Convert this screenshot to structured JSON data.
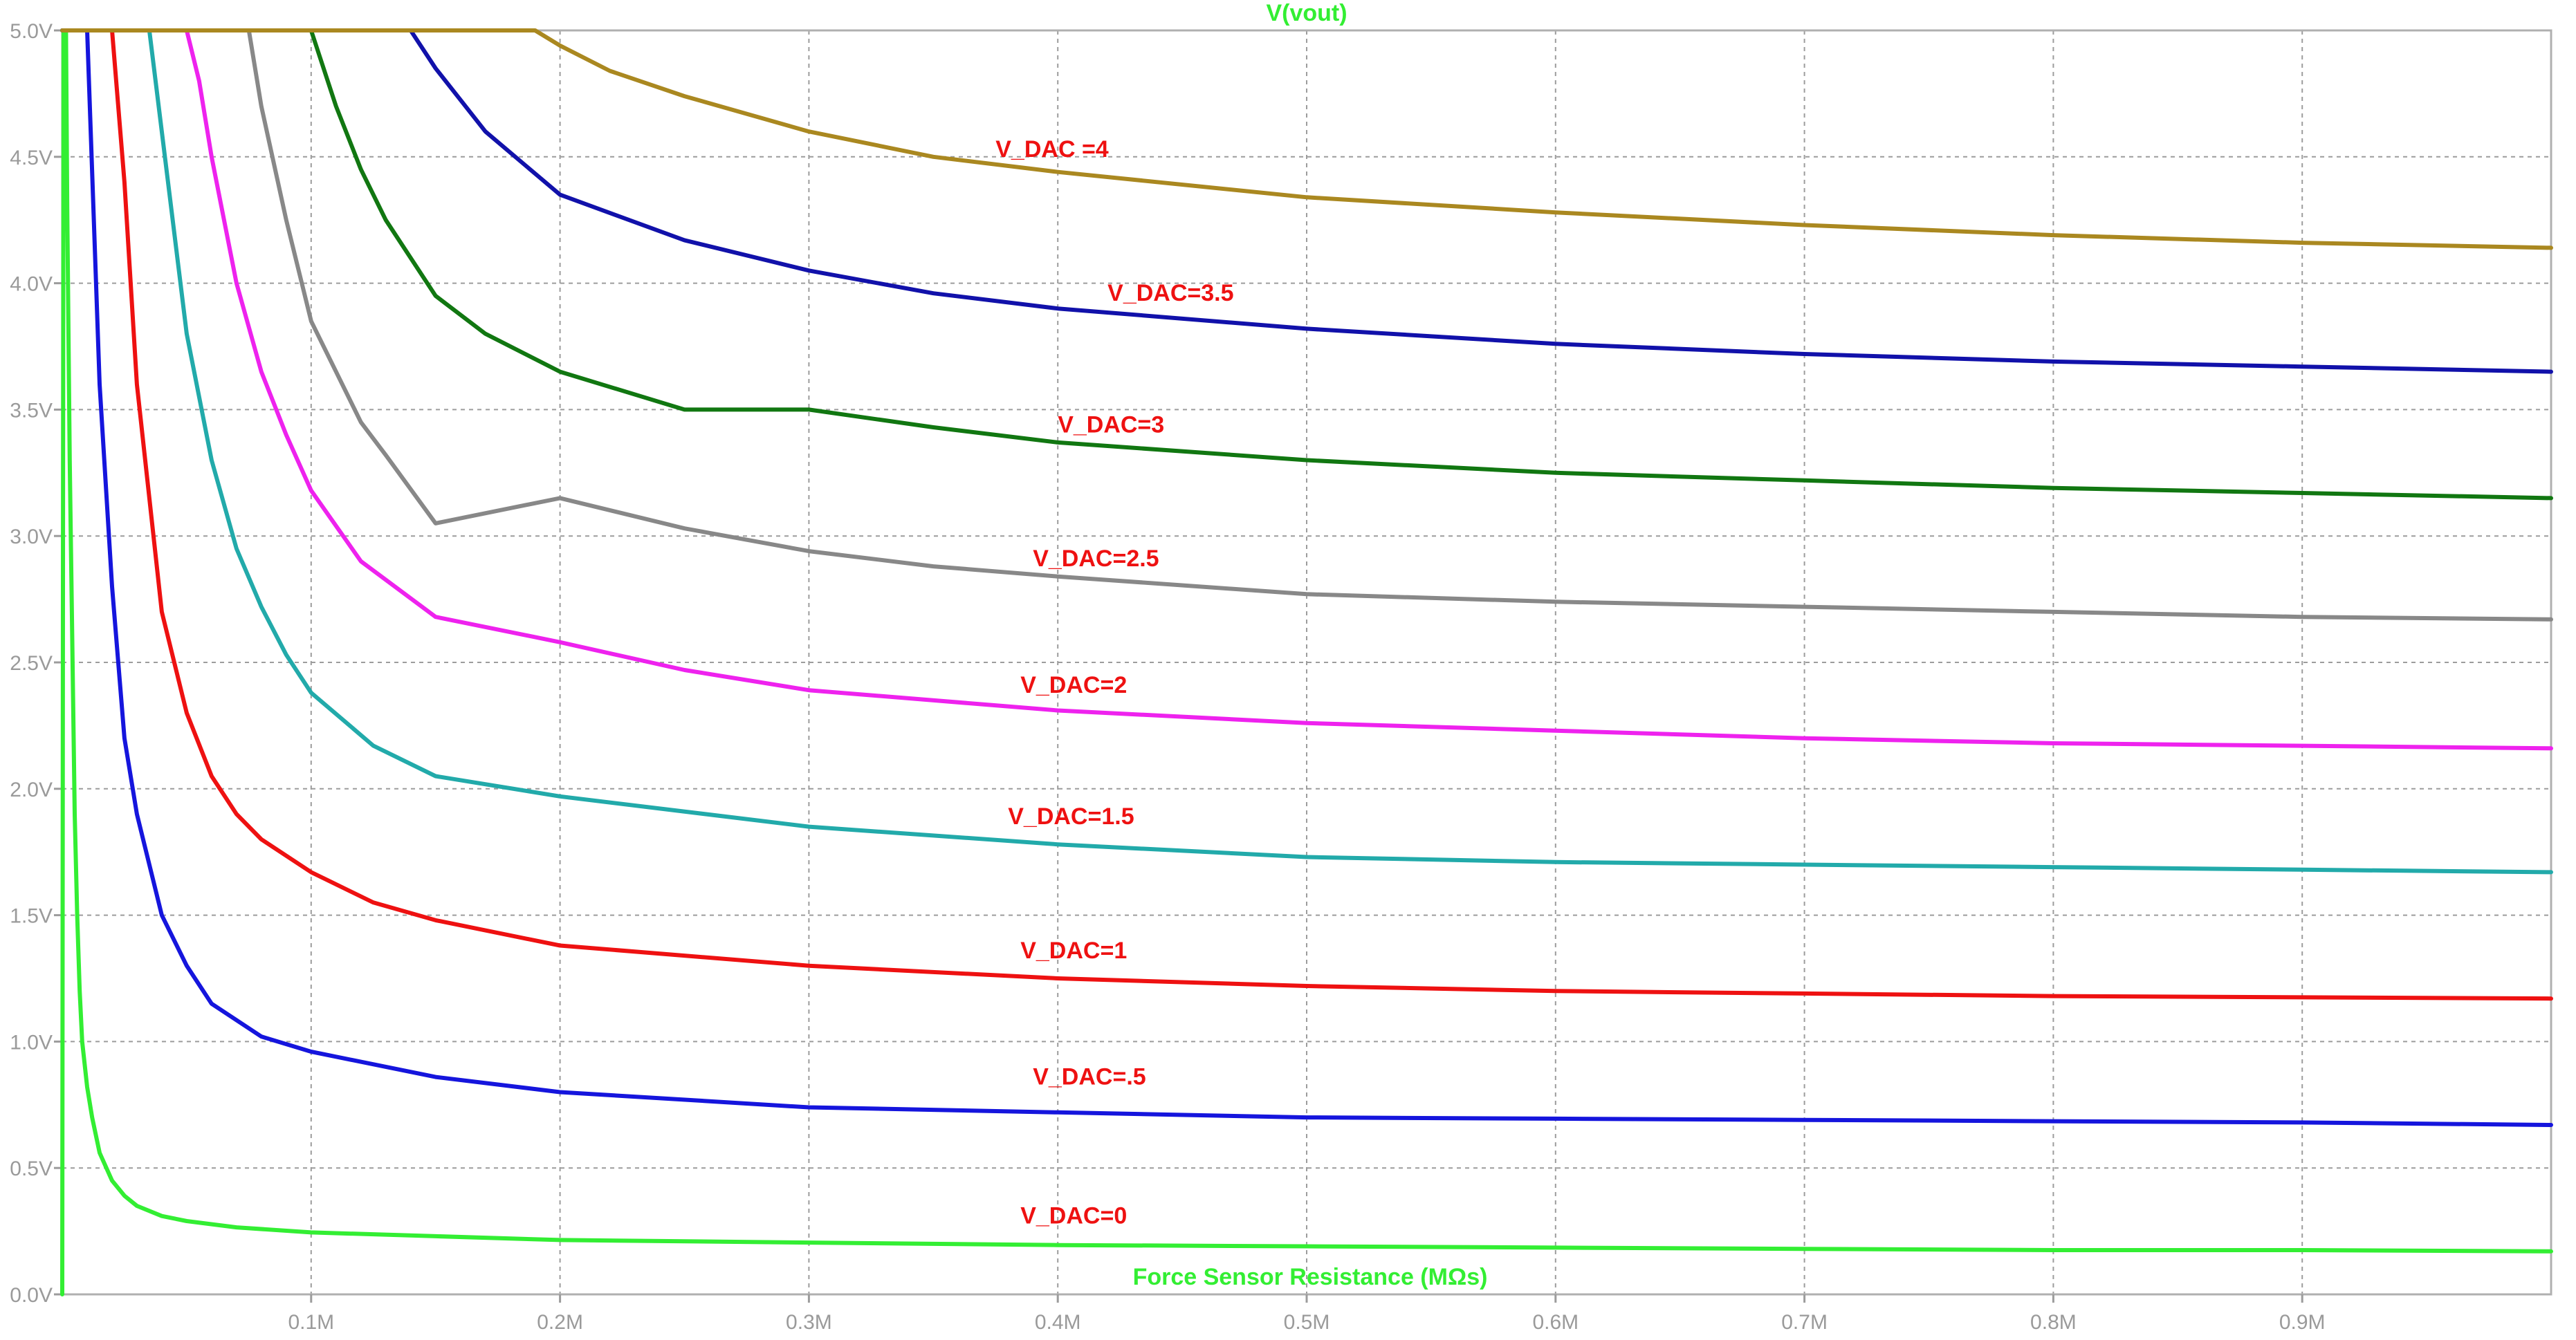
{
  "chart_data": {
    "type": "line",
    "title": "V(vout)",
    "title_color": "#33ee33",
    "xlabel": "Force Sensor Resistance (MΩs)",
    "xlabel_color": "#33ee33",
    "ylabel": "",
    "xlim": [
      0,
      1.0
    ],
    "ylim": [
      0,
      5.0
    ],
    "grid": true,
    "x_ticks": [
      {
        "value": 0.1,
        "label": "0.1M"
      },
      {
        "value": 0.2,
        "label": "0.2M"
      },
      {
        "value": 0.3,
        "label": "0.3M"
      },
      {
        "value": 0.4,
        "label": "0.4M"
      },
      {
        "value": 0.5,
        "label": "0.5M"
      },
      {
        "value": 0.6,
        "label": "0.6M"
      },
      {
        "value": 0.7,
        "label": "0.7M"
      },
      {
        "value": 0.8,
        "label": "0.8M"
      },
      {
        "value": 0.9,
        "label": "0.9M"
      }
    ],
    "y_ticks": [
      {
        "value": 0.0,
        "label": "0.0V"
      },
      {
        "value": 0.5,
        "label": "0.5V"
      },
      {
        "value": 1.0,
        "label": "1.0V"
      },
      {
        "value": 1.5,
        "label": "1.5V"
      },
      {
        "value": 2.0,
        "label": "2.0V"
      },
      {
        "value": 2.5,
        "label": "2.5V"
      },
      {
        "value": 3.0,
        "label": "3.0V"
      },
      {
        "value": 3.5,
        "label": "3.5V"
      },
      {
        "value": 4.0,
        "label": "4.0V"
      },
      {
        "value": 4.5,
        "label": "4.5V"
      },
      {
        "value": 5.0,
        "label": "5.0V"
      }
    ],
    "label_color": "#ee1111",
    "series": [
      {
        "name": "V_DAC=0",
        "color": "#33ee33",
        "label_x": 0.385,
        "label_y": 0.28,
        "x": [
          0.0,
          0.0005,
          0.001,
          0.0015,
          0.002,
          0.003,
          0.004,
          0.005,
          0.006,
          0.007,
          0.008,
          0.01,
          0.012,
          0.015,
          0.02,
          0.025,
          0.03,
          0.04,
          0.05,
          0.07,
          0.1,
          0.15,
          0.2,
          0.3,
          0.4,
          0.5,
          0.6,
          0.7,
          0.8,
          0.9,
          1.0
        ],
        "y": [
          0.0,
          5.0,
          5.0,
          5.0,
          4.3,
          3.3,
          2.6,
          1.9,
          1.5,
          1.2,
          1.0,
          0.82,
          0.7,
          0.56,
          0.45,
          0.39,
          0.35,
          0.31,
          0.29,
          0.265,
          0.245,
          0.23,
          0.215,
          0.205,
          0.195,
          0.19,
          0.185,
          0.18,
          0.175,
          0.175,
          0.17
        ]
      },
      {
        "name": "V_DAC=.5",
        "color": "#1515dd",
        "label_x": 0.39,
        "label_y": 0.83,
        "x": [
          0.0,
          0.005,
          0.01,
          0.015,
          0.02,
          0.025,
          0.03,
          0.04,
          0.05,
          0.06,
          0.08,
          0.1,
          0.15,
          0.2,
          0.3,
          0.4,
          0.5,
          0.6,
          0.7,
          0.8,
          0.9,
          1.0
        ],
        "y": [
          5.0,
          5.0,
          5.0,
          3.6,
          2.8,
          2.2,
          1.9,
          1.5,
          1.3,
          1.15,
          1.02,
          0.96,
          0.86,
          0.8,
          0.74,
          0.72,
          0.7,
          0.695,
          0.69,
          0.685,
          0.68,
          0.67
        ]
      },
      {
        "name": "V_DAC=1",
        "color": "#ee1111",
        "label_x": 0.385,
        "label_y": 1.33,
        "x": [
          0.0,
          0.02,
          0.025,
          0.03,
          0.04,
          0.05,
          0.06,
          0.07,
          0.08,
          0.1,
          0.125,
          0.15,
          0.2,
          0.3,
          0.4,
          0.5,
          0.6,
          0.7,
          0.8,
          0.9,
          1.0
        ],
        "y": [
          5.0,
          5.0,
          4.4,
          3.6,
          2.7,
          2.3,
          2.05,
          1.9,
          1.8,
          1.67,
          1.55,
          1.48,
          1.38,
          1.3,
          1.25,
          1.22,
          1.2,
          1.19,
          1.18,
          1.175,
          1.17
        ]
      },
      {
        "name": "V_DAC=1.5",
        "color": "#22aaaa",
        "label_x": 0.38,
        "label_y": 1.86,
        "x": [
          0.0,
          0.035,
          0.04,
          0.045,
          0.05,
          0.06,
          0.07,
          0.08,
          0.09,
          0.1,
          0.125,
          0.15,
          0.2,
          0.3,
          0.4,
          0.5,
          0.6,
          0.7,
          0.8,
          0.9,
          1.0
        ],
        "y": [
          5.0,
          5.0,
          4.6,
          4.2,
          3.8,
          3.3,
          2.95,
          2.72,
          2.53,
          2.38,
          2.17,
          2.05,
          1.97,
          1.85,
          1.78,
          1.73,
          1.71,
          1.7,
          1.69,
          1.68,
          1.67
        ]
      },
      {
        "name": "V_DAC=2",
        "color": "#ee22ee",
        "label_x": 0.385,
        "label_y": 2.38,
        "x": [
          0.0,
          0.05,
          0.055,
          0.06,
          0.07,
          0.08,
          0.09,
          0.1,
          0.12,
          0.15,
          0.2,
          0.25,
          0.3,
          0.4,
          0.5,
          0.6,
          0.7,
          0.8,
          0.9,
          1.0
        ],
        "y": [
          5.0,
          5.0,
          4.8,
          4.5,
          4.0,
          3.65,
          3.4,
          3.18,
          2.9,
          2.68,
          2.58,
          2.47,
          2.39,
          2.31,
          2.26,
          2.23,
          2.2,
          2.18,
          2.17,
          2.16
        ]
      },
      {
        "name": "V_DAC=2.5",
        "color": "#888888",
        "label_x": 0.39,
        "label_y": 2.88,
        "x": [
          0.0,
          0.075,
          0.08,
          0.09,
          0.1,
          0.11,
          0.12,
          0.13,
          0.15,
          0.2,
          0.25,
          0.3,
          0.35,
          0.4,
          0.5,
          0.6,
          0.7,
          0.8,
          0.9,
          1.0
        ],
        "y": [
          5.0,
          5.0,
          4.7,
          4.25,
          3.85,
          3.65,
          3.45,
          3.32,
          3.05,
          3.15,
          3.03,
          2.94,
          2.88,
          2.84,
          2.77,
          2.74,
          2.72,
          2.7,
          2.68,
          2.67
        ]
      },
      {
        "name": "V_DAC=3",
        "color": "#117711",
        "label_x": 0.4,
        "label_y": 3.41,
        "x": [
          0.0,
          0.1,
          0.11,
          0.12,
          0.13,
          0.15,
          0.17,
          0.2,
          0.25,
          0.3,
          0.35,
          0.4,
          0.5,
          0.6,
          0.7,
          0.8,
          0.9,
          1.0
        ],
        "y": [
          5.0,
          5.0,
          4.7,
          4.45,
          4.25,
          3.95,
          3.8,
          3.65,
          3.5,
          3.5,
          3.43,
          3.37,
          3.3,
          3.25,
          3.22,
          3.19,
          3.17,
          3.15
        ]
      },
      {
        "name": "V_DAC=3.5",
        "color": "#1111aa",
        "label_x": 0.42,
        "label_y": 3.93,
        "x": [
          0.0,
          0.14,
          0.15,
          0.17,
          0.2,
          0.25,
          0.3,
          0.35,
          0.4,
          0.5,
          0.6,
          0.7,
          0.8,
          0.9,
          1.0
        ],
        "y": [
          5.0,
          5.0,
          4.85,
          4.6,
          4.35,
          4.17,
          4.05,
          3.96,
          3.9,
          3.82,
          3.76,
          3.72,
          3.69,
          3.67,
          3.65
        ]
      },
      {
        "name": "V_DAC =4",
        "color": "#aa8820",
        "label_x": 0.375,
        "label_y": 4.5,
        "x": [
          0.0,
          0.19,
          0.2,
          0.22,
          0.25,
          0.3,
          0.35,
          0.4,
          0.5,
          0.6,
          0.7,
          0.8,
          0.9,
          1.0
        ],
        "y": [
          5.0,
          5.0,
          4.94,
          4.84,
          4.74,
          4.6,
          4.5,
          4.44,
          4.34,
          4.28,
          4.23,
          4.19,
          4.16,
          4.14
        ]
      }
    ]
  }
}
